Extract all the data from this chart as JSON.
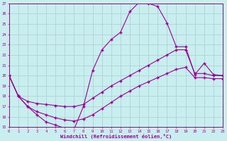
{
  "xlabel": "Windchill (Refroidissement éolien,°C)",
  "bg_color": "#c8eef0",
  "line_color": "#990099",
  "grid_color": "#aacccc",
  "x_min": 0,
  "x_max": 23,
  "y_min": 15,
  "y_max": 27,
  "line1_x": [
    0,
    1,
    2,
    3,
    4,
    5,
    6,
    7,
    8,
    9,
    10,
    11,
    12,
    13,
    14,
    15,
    16,
    17,
    18,
    19,
    20,
    21,
    22,
    23
  ],
  "line1_y": [
    20,
    18,
    17,
    16.2,
    15.5,
    15.2,
    14.9,
    14.8,
    17.0,
    20.5,
    22.5,
    23.5,
    24.2,
    26.2,
    27.1,
    27.0,
    26.7,
    25.1,
    22.8,
    22.8,
    20.1,
    21.2,
    20.1,
    20.0
  ],
  "line2_x": [
    0,
    1,
    2,
    3,
    4,
    5,
    6,
    7,
    8,
    9,
    10,
    11,
    12,
    13,
    14,
    15,
    16,
    17,
    18,
    19,
    20,
    21,
    22,
    23
  ],
  "line2_y": [
    20,
    18.0,
    17.5,
    17.3,
    17.2,
    17.1,
    17.0,
    17.0,
    17.2,
    17.8,
    18.4,
    19.0,
    19.5,
    20.0,
    20.5,
    21.0,
    21.5,
    22.0,
    22.5,
    22.5,
    20.2,
    20.2,
    20.0,
    20.0
  ],
  "line3_x": [
    0,
    1,
    2,
    3,
    4,
    5,
    6,
    7,
    8,
    9,
    10,
    11,
    12,
    13,
    14,
    15,
    16,
    17,
    18,
    19,
    20,
    21,
    22,
    23
  ],
  "line3_y": [
    20,
    18.0,
    17.0,
    16.5,
    16.2,
    15.9,
    15.7,
    15.6,
    15.8,
    16.2,
    16.8,
    17.4,
    18.0,
    18.5,
    19.0,
    19.4,
    19.8,
    20.2,
    20.6,
    20.8,
    19.8,
    19.8,
    19.7,
    19.7
  ]
}
